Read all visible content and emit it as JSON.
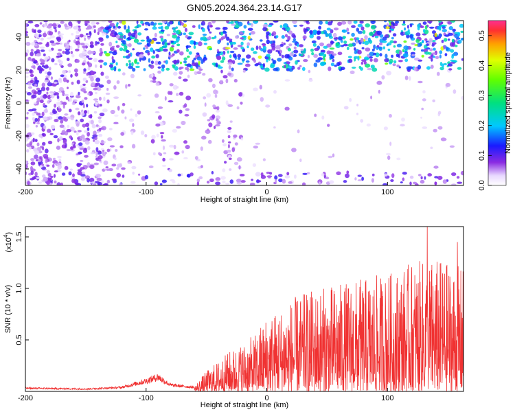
{
  "chart_data": [
    {
      "type": "heatmap",
      "title": "GN05.2024.364.23.14.G17",
      "xlabel": "Height of straight line (km)",
      "ylabel": "Frequency (Hz)",
      "xlim": [
        -200,
        163
      ],
      "ylim": [
        -50,
        50
      ],
      "x_ticks": [
        "-200",
        "-100",
        "0",
        "100"
      ],
      "y_ticks": [
        "-40",
        "-20",
        "0",
        "20",
        "40"
      ],
      "colorbar": {
        "label": "Normalized spectral amplitude",
        "range": [
          0,
          0.55
        ],
        "ticks": [
          "0.0",
          "0.1",
          "0.2",
          "0.3",
          "0.4",
          "0.5"
        ]
      },
      "regions": [
        {
          "x": [
            -200,
            -135
          ],
          "y": [
            -50,
            48
          ],
          "amplitude": 0.06
        },
        {
          "x": [
            -135,
            163
          ],
          "y": [
            20,
            48
          ],
          "amplitude": 0.15
        },
        {
          "x": [
            -95,
            -65
          ],
          "y": [
            -50,
            20
          ],
          "amplitude": 0.04
        },
        {
          "x": [
            -135,
            163
          ],
          "y": [
            -50,
            -42
          ],
          "amplitude": 0.04
        }
      ]
    },
    {
      "type": "line",
      "xlabel": "Height of straight line (km)",
      "ylabel": "SNR (10 * v/v)",
      "y_scale_label": "(x10",
      "y_scale_exp": "4",
      "xlim": [
        -200,
        163
      ],
      "ylim": [
        0,
        1.6
      ],
      "x_ticks": [
        "-200",
        "-100",
        "0",
        "100"
      ],
      "y_ticks": [
        "0.5",
        "1.0",
        "1.5"
      ],
      "envelope": [
        {
          "x": -200,
          "y": 0.04
        },
        {
          "x": -150,
          "y": 0.03
        },
        {
          "x": -120,
          "y": 0.05
        },
        {
          "x": -100,
          "y": 0.13
        },
        {
          "x": -90,
          "y": 0.18
        },
        {
          "x": -80,
          "y": 0.08
        },
        {
          "x": -60,
          "y": 0.05
        },
        {
          "x": -50,
          "y": 0.2
        },
        {
          "x": -30,
          "y": 0.4
        },
        {
          "x": -10,
          "y": 0.55
        },
        {
          "x": 0,
          "y": 0.75
        },
        {
          "x": 10,
          "y": 0.8
        },
        {
          "x": 20,
          "y": 0.9
        },
        {
          "x": 40,
          "y": 1.0
        },
        {
          "x": 60,
          "y": 1.05
        },
        {
          "x": 80,
          "y": 1.1
        },
        {
          "x": 100,
          "y": 1.15
        },
        {
          "x": 120,
          "y": 1.25
        },
        {
          "x": 140,
          "y": 1.3
        },
        {
          "x": 163,
          "y": 1.2
        }
      ],
      "peaks": [
        {
          "x": 133,
          "y": 1.6
        },
        {
          "x": 158,
          "y": 1.45
        }
      ],
      "series_color": "#f03232"
    }
  ]
}
